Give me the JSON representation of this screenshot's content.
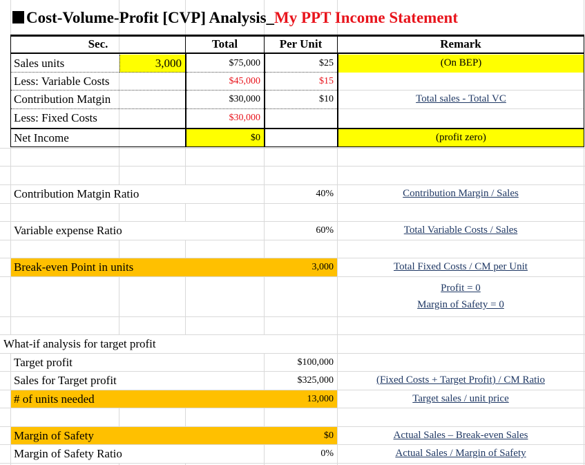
{
  "title": {
    "square": "■",
    "main": "Cost-Volume-Profit [CVP] Analysis_",
    "highlight": "My PPT Income Statement"
  },
  "headers": {
    "sec": "Sec.",
    "total": "Total",
    "per_unit": "Per Unit",
    "remark": "Remark"
  },
  "income_statement": {
    "sales_units_label": "Sales units",
    "sales_units_value": "3,000",
    "sales_total": "$75,000",
    "sales_per_unit": "$25",
    "sales_remark": "(On BEP)",
    "vc_label": "Less: Variable Costs",
    "vc_total": "$45,000",
    "vc_per_unit": "$15",
    "cm_label": "Contribution Matgin",
    "cm_total": "$30,000",
    "cm_per_unit": "$10",
    "cm_remark": "Total sales - Total VC",
    "fc_label": "Less: Fixed Costs",
    "fc_total": "$30,000",
    "ni_label": "Net Income",
    "ni_total": "$0",
    "ni_remark": "(profit zero)"
  },
  "ratios": {
    "cm_ratio_label": "Contribution Matgin Ratio",
    "cm_ratio_value": "40%",
    "cm_ratio_remark": "Contribution Margin / Sales",
    "ve_ratio_label": "Variable expense Ratio",
    "ve_ratio_value": "60%",
    "ve_ratio_remark": "Total Variable Costs / Sales",
    "bep_label": "Break-even Point in units",
    "bep_value": "3,000",
    "bep_remark": "Total Fixed Costs /  CM per Unit",
    "bep_note1": "Profit = 0",
    "bep_note2": "Margin of Safety = 0"
  },
  "whatif": {
    "heading": "What-if analysis for target profit",
    "tp_label": "Target profit",
    "tp_value": "$100,000",
    "sales_tp_label": "Sales for Target profit",
    "sales_tp_value": "$325,000",
    "sales_tp_remark": "(Fixed Costs + Target Profit) / CM Ratio",
    "units_label": "# of units needed",
    "units_value": "13,000",
    "units_remark": "Target sales / unit price"
  },
  "safety": {
    "mos_label": "Margin of Safety",
    "mos_value": "$0",
    "mos_remark": "Actual Sales – Break-even Sales",
    "mosr_label": "Margin of Safety Ratio",
    "mosr_value": "0%",
    "mosr_remark": "Actual Sales / Margin of Safety"
  },
  "colors": {
    "yellow": "#ffff00",
    "orange": "#ffc000",
    "red": "#e8141c",
    "link": "#1f3864"
  }
}
